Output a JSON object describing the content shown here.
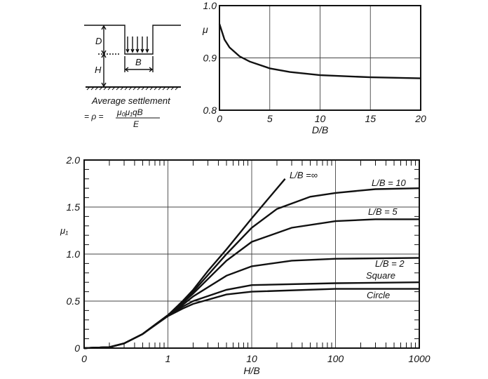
{
  "diagram": {
    "label_d": "D",
    "label_h": "H",
    "label_b": "B",
    "caption": "Average settlement",
    "formula_lhs": "= ρ =",
    "formula_num": "μ₀μ₁qB",
    "formula_den": "E"
  },
  "chart_data": [
    {
      "type": "line",
      "xlabel": "D/B",
      "ylabel": "μ",
      "xlim": [
        0,
        20
      ],
      "ylim": [
        0.8,
        1.0
      ],
      "x_ticks": [
        "0",
        "5",
        "10",
        "15",
        "20"
      ],
      "y_ticks": [
        "0.8",
        "0.9",
        "1.0"
      ],
      "grid": true,
      "series": [
        {
          "x": [
            0,
            0.5,
            1,
            2,
            3,
            5,
            7,
            10,
            15,
            20
          ],
          "y": [
            0.965,
            0.935,
            0.92,
            0.903,
            0.893,
            0.88,
            0.873,
            0.867,
            0.863,
            0.861
          ]
        }
      ]
    },
    {
      "type": "line",
      "xlabel": "H/B",
      "ylabel": "μ₁",
      "x_scale": "log",
      "xlim": [
        0,
        1000
      ],
      "ylim": [
        0,
        2.0
      ],
      "x_ticks": [
        "0",
        "1",
        "10",
        "100",
        "1000"
      ],
      "y_ticks": [
        "0",
        "0.5",
        "1.0",
        "1.5",
        "2.0"
      ],
      "grid": true,
      "series": [
        {
          "name": "L/B =∞",
          "x": [
            0,
            0.2,
            0.3,
            0.5,
            1,
            1.5,
            2,
            3,
            5,
            10,
            25
          ],
          "y": [
            0,
            0.01,
            0.05,
            0.15,
            0.35,
            0.5,
            0.62,
            0.82,
            1.05,
            1.38,
            1.8
          ]
        },
        {
          "name": "L/B = 10",
          "x": [
            0,
            0.2,
            0.3,
            0.5,
            1,
            1.5,
            2,
            5,
            10,
            20,
            50,
            100,
            300,
            1000
          ],
          "y": [
            0,
            0.01,
            0.05,
            0.15,
            0.35,
            0.49,
            0.6,
            1.0,
            1.28,
            1.48,
            1.61,
            1.65,
            1.69,
            1.7
          ]
        },
        {
          "name": "L/B = 5",
          "x": [
            0,
            0.2,
            0.3,
            0.5,
            1,
            1.5,
            2,
            5,
            10,
            30,
            100,
            300,
            1000
          ],
          "y": [
            0,
            0.01,
            0.05,
            0.15,
            0.35,
            0.48,
            0.58,
            0.93,
            1.13,
            1.28,
            1.35,
            1.37,
            1.37
          ]
        },
        {
          "name": "L/B = 2",
          "x": [
            0,
            0.2,
            0.3,
            0.5,
            1,
            1.5,
            2,
            5,
            10,
            30,
            100,
            1000
          ],
          "y": [
            0,
            0.01,
            0.05,
            0.15,
            0.35,
            0.46,
            0.55,
            0.77,
            0.87,
            0.93,
            0.95,
            0.96
          ]
        },
        {
          "name": "Square",
          "x": [
            0,
            0.2,
            0.3,
            0.5,
            1,
            1.5,
            2,
            5,
            10,
            100,
            1000
          ],
          "y": [
            0,
            0.01,
            0.05,
            0.15,
            0.35,
            0.44,
            0.5,
            0.62,
            0.67,
            0.69,
            0.7
          ]
        },
        {
          "name": "Circle",
          "x": [
            0,
            0.2,
            0.3,
            0.5,
            1,
            1.5,
            2,
            5,
            10,
            100,
            1000
          ],
          "y": [
            0,
            0.01,
            0.05,
            0.15,
            0.34,
            0.42,
            0.47,
            0.57,
            0.6,
            0.63,
            0.63
          ]
        }
      ]
    }
  ]
}
